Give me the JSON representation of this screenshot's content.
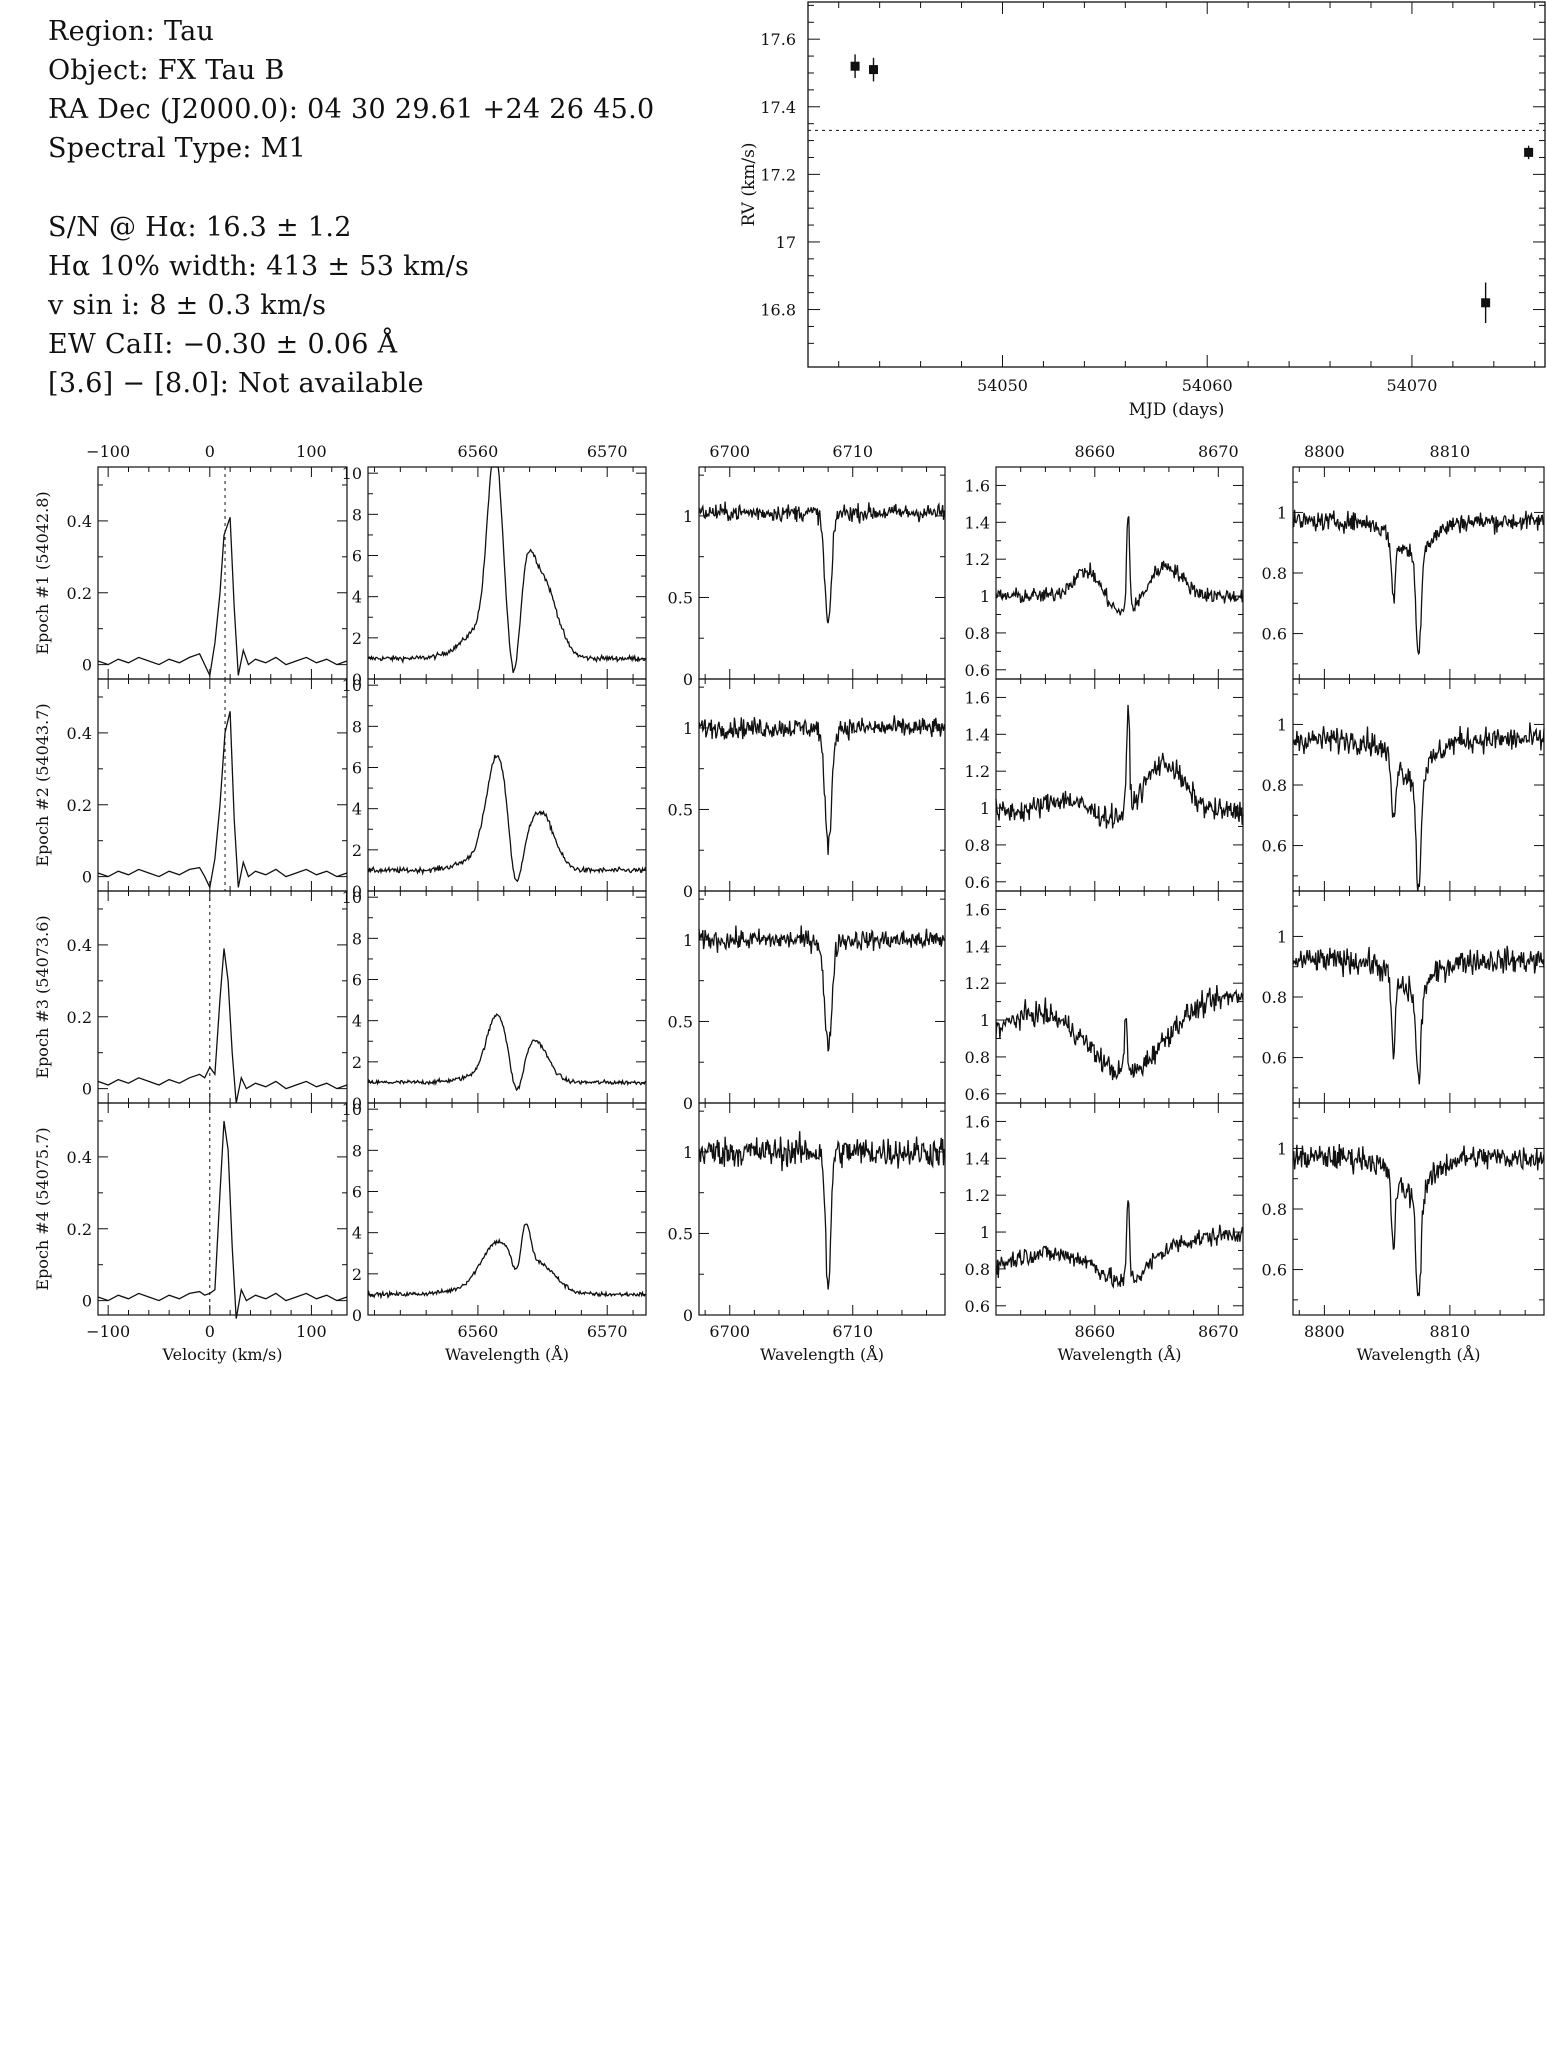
{
  "info": {
    "region": "Region: Tau",
    "object": "Object: FX Tau B",
    "radec": "RA Dec (J2000.0): 04 30 29.61 +24 26 45.0",
    "sptype": "Spectral Type: M1",
    "sn": "S/N @ Hα: 16.3 ± 1.2",
    "ha_width": "Hα 10% width: 413 ± 53 km/s",
    "vsini": "v sin i: 8 ± 0.3 km/s",
    "ew_caii": "EW CaII: −0.30 ± 0.06 Å",
    "irac": "[3.6] − [8.0]: Not available"
  },
  "chart_data": [
    {
      "type": "scatter",
      "title": "",
      "xlabel": "MJD (days)",
      "ylabel": "RV (km/s)",
      "xlim": [
        54040.5,
        54076.5
      ],
      "ylim": [
        16.63,
        17.71
      ],
      "xticks": [
        54050,
        54060,
        54070
      ],
      "yticks": [
        16.8,
        17,
        17.2,
        17.4,
        17.6
      ],
      "ytick_labels": [
        "16.8",
        "17",
        "17.2",
        "17.4",
        "17.6"
      ],
      "mean_rv_dashed": 17.33,
      "points": [
        {
          "x": 54042.8,
          "y": 17.52,
          "err": 0.035
        },
        {
          "x": 54043.7,
          "y": 17.51,
          "err": 0.035
        },
        {
          "x": 54073.6,
          "y": 16.82,
          "err": 0.06
        },
        {
          "x": 54075.7,
          "y": 17.265,
          "err": 0.02
        }
      ]
    },
    {
      "type": "line",
      "title": "",
      "epochs": [
        "Epoch #1 (54042.8)",
        "Epoch #2 (54043.7)",
        "Epoch #3 (54073.6)",
        "Epoch #4 (54075.7)"
      ],
      "panels": [
        {
          "id": "ccf",
          "xlabel": "Velocity (km/s)",
          "xlim": [
            -110,
            135
          ],
          "ylim": [
            -0.04,
            0.55
          ],
          "xticks": [
            -100,
            0,
            100
          ],
          "yticks": [
            0,
            0.2,
            0.4
          ],
          "ytick_labels": [
            "0",
            "0.2",
            "0.4"
          ],
          "dashed_velocity": [
            15,
            15,
            0,
            0
          ],
          "curves": [
            {
              "x": [
                -110,
                -100,
                -90,
                -80,
                -70,
                -60,
                -50,
                -40,
                -30,
                -20,
                -10,
                -5,
                0,
                5,
                10,
                14,
                20,
                24,
                28,
                33,
                38,
                45,
                55,
                65,
                75,
                85,
                95,
                105,
                115,
                125,
                135
              ],
              "y": [
                0.01,
                0.0,
                0.015,
                0.005,
                0.02,
                0.01,
                0.0,
                0.015,
                0.005,
                0.02,
                0.03,
                0.0,
                -0.03,
                0.06,
                0.2,
                0.36,
                0.41,
                0.16,
                -0.03,
                0.04,
                0.0,
                0.015,
                0.005,
                0.02,
                0.0,
                0.01,
                0.02,
                0.005,
                0.015,
                0.0,
                0.01
              ]
            },
            {
              "x": [
                -110,
                -100,
                -90,
                -80,
                -70,
                -60,
                -50,
                -40,
                -30,
                -20,
                -10,
                -5,
                0,
                5,
                10,
                15,
                20,
                24,
                28,
                33,
                38,
                45,
                55,
                65,
                75,
                85,
                95,
                105,
                115,
                125,
                135
              ],
              "y": [
                0.01,
                0.0,
                0.015,
                0.005,
                0.02,
                0.01,
                0.0,
                0.015,
                0.005,
                0.02,
                0.025,
                0.0,
                -0.03,
                0.05,
                0.2,
                0.4,
                0.46,
                0.16,
                -0.03,
                0.04,
                0.0,
                0.015,
                0.005,
                0.02,
                0.0,
                0.01,
                0.02,
                0.005,
                0.015,
                0.0,
                0.01
              ]
            },
            {
              "x": [
                -110,
                -100,
                -90,
                -80,
                -70,
                -60,
                -50,
                -40,
                -30,
                -20,
                -10,
                -5,
                0,
                5,
                10,
                14,
                18,
                22,
                26,
                31,
                36,
                45,
                55,
                65,
                75,
                85,
                95,
                105,
                115,
                125,
                135
              ],
              "y": [
                0.02,
                0.01,
                0.025,
                0.015,
                0.03,
                0.02,
                0.01,
                0.025,
                0.015,
                0.03,
                0.04,
                0.03,
                0.06,
                0.04,
                0.25,
                0.39,
                0.3,
                0.1,
                -0.04,
                0.03,
                0.0,
                0.015,
                0.005,
                0.02,
                0.0,
                0.01,
                0.02,
                0.005,
                0.015,
                0.0,
                0.01
              ]
            },
            {
              "x": [
                -110,
                -100,
                -90,
                -80,
                -70,
                -60,
                -50,
                -40,
                -30,
                -20,
                -10,
                -5,
                0,
                5,
                10,
                14,
                18,
                22,
                26,
                31,
                36,
                45,
                55,
                65,
                75,
                85,
                95,
                105,
                115,
                125,
                135
              ],
              "y": [
                0.01,
                0.0,
                0.015,
                0.005,
                0.02,
                0.01,
                0.0,
                0.015,
                0.005,
                0.02,
                0.025,
                0.015,
                0.02,
                0.03,
                0.3,
                0.5,
                0.42,
                0.15,
                -0.05,
                0.03,
                0.0,
                0.015,
                0.005,
                0.02,
                0.0,
                0.01,
                0.02,
                0.005,
                0.015,
                0.0,
                0.01
              ]
            }
          ]
        },
        {
          "id": "halpha",
          "xlabel": "Wavelength (Å)",
          "xlim": [
            6551.5,
            6573
          ],
          "ylim": [
            0,
            10.3
          ],
          "xticks": [
            6560,
            6570
          ],
          "yticks": [
            0,
            2,
            4,
            6,
            8,
            10
          ],
          "ytick_labels": [
            "0",
            "2",
            "4",
            "6",
            "8",
            "10"
          ],
          "profiles": [
            {
              "base": 1.0,
              "peaks": [
                [
                  6561.3,
                  8.3,
                  0.55
                ],
                [
                  6561.3,
                  2.0,
                  1.9
                ],
                [
                  6563.7,
                  2.6,
                  0.6
                ],
                [
                  6565.0,
                  3.6,
                  1.1
                ]
              ],
              "absorption": [
                6562.85,
                3.6,
                0.45
              ],
              "noise": 0.12
            },
            {
              "base": 1.0,
              "peaks": [
                [
                  6561.5,
                  4.6,
                  0.8
                ],
                [
                  6561.5,
                  1.0,
                  2.0
                ],
                [
                  6564.9,
                  2.6,
                  1.0
                ]
              ],
              "absorption": [
                6562.9,
                2.6,
                0.45
              ],
              "noise": 0.12
            },
            {
              "base": 1.0,
              "peaks": [
                [
                  6561.5,
                  2.8,
                  0.8
                ],
                [
                  6561.5,
                  0.5,
                  2.0
                ],
                [
                  6564.4,
                  1.9,
                  1.0
                ]
              ],
              "absorption": [
                6563.0,
                1.9,
                0.5
              ],
              "noise": 0.1
            },
            {
              "base": 1.0,
              "peaks": [
                [
                  6561.5,
                  2.0,
                  1.2
                ],
                [
                  6561.5,
                  0.5,
                  2.5
                ],
                [
                  6563.7,
                  1.9,
                  0.35
                ],
                [
                  6564.7,
                  1.3,
                  1.3
                ]
              ],
              "absorption": [
                6563.0,
                0.9,
                0.35
              ],
              "noise": 0.1
            }
          ]
        },
        {
          "id": "li",
          "xlabel": "Wavelength (Å)",
          "xlim": [
            6697.5,
            6717.5
          ],
          "ylim": [
            0,
            1.3
          ],
          "xticks": [
            6700,
            6710
          ],
          "yticks": [
            0,
            0.5,
            1
          ],
          "ytick_labels": [
            "0",
            "0.5",
            "1"
          ],
          "profiles": [
            {
              "base": 1.02,
              "lines": [
                [
                  6708.0,
                  0.68,
                  0.28
                ]
              ],
              "noise": 0.05
            },
            {
              "base": 1.0,
              "lines": [
                [
                  6708.0,
                  0.72,
                  0.28
                ]
              ],
              "noise": 0.06
            },
            {
              "base": 1.0,
              "lines": [
                [
                  6708.0,
                  0.66,
                  0.3
                ]
              ],
              "noise": 0.06
            },
            {
              "base": 1.0,
              "lines": [
                [
                  6708.0,
                  0.88,
                  0.2
                ]
              ],
              "noise": 0.09
            }
          ]
        },
        {
          "id": "caii",
          "xlabel": "Wavelength (Å)",
          "xlim": [
            8652,
            8672
          ],
          "ylim": [
            0.55,
            1.7
          ],
          "xticks": [
            8660,
            8670
          ],
          "yticks": [
            0.6,
            0.8,
            1,
            1.2,
            1.4,
            1.6
          ],
          "ytick_labels": [
            "0.6",
            "0.8",
            "1",
            "1.2",
            "1.4",
            "1.6"
          ],
          "profiles": [
            {
              "base": 1.0,
              "bumps": [
                [
                  8659.5,
                  0.17,
                  1.2
                ],
                [
                  8665.5,
                  0.2,
                  1.4
                ]
              ],
              "trough": [
                8662.5,
                -0.12,
                2.0
              ],
              "spike": [
                8662.7,
                0.55,
                0.12
              ],
              "noise": 0.04
            },
            {
              "base": 0.98,
              "bumps": [
                [
                  8657.5,
                  0.07,
                  1.5
                ],
                [
                  8665.5,
                  0.28,
                  1.6
                ]
              ],
              "trough": [
                8662.5,
                -0.05,
                2.0
              ],
              "spike": [
                8662.7,
                0.55,
                0.12
              ],
              "noise": 0.06
            },
            {
              "base": 1.02,
              "bumps": [
                [
                  8655.0,
                  0.1,
                  2.5
                ]
              ],
              "trough": [
                8662.7,
                -0.32,
                2.6
              ],
              "spike": [
                8662.5,
                0.3,
                0.12
              ],
              "noise": 0.06,
              "slope": 0.012
            },
            {
              "base": 0.9,
              "bumps": [
                [
                  8655.0,
                  0.05,
                  2.0
                ]
              ],
              "trough": [
                8662.5,
                -0.18,
                1.8
              ],
              "spike": [
                8662.7,
                0.45,
                0.12
              ],
              "noise": 0.05,
              "slope": 0.01
            }
          ]
        },
        {
          "id": "fe",
          "xlabel": "Wavelength (Å)",
          "xlim": [
            8797.5,
            8817.5
          ],
          "ylim": [
            0.45,
            1.15
          ],
          "xticks": [
            8800,
            8810
          ],
          "yticks": [
            0.6,
            0.8,
            1
          ],
          "ytick_labels": [
            "0.6",
            "0.8",
            "1"
          ],
          "profiles": [
            {
              "base": 0.97,
              "lines": [
                [
                  8805.5,
                  0.2,
                  0.15
                ],
                [
                  8807.5,
                  0.35,
                  0.2
                ]
              ],
              "broad": [
                8807.0,
                0.1,
                1.5
              ],
              "noise": 0.03
            },
            {
              "base": 0.95,
              "lines": [
                [
                  8805.5,
                  0.2,
                  0.15
                ],
                [
                  8807.5,
                  0.38,
                  0.2
                ]
              ],
              "broad": [
                8807.0,
                0.12,
                1.5
              ],
              "noise": 0.04
            },
            {
              "base": 0.92,
              "lines": [
                [
                  8805.5,
                  0.25,
                  0.15
                ],
                [
                  8807.5,
                  0.3,
                  0.2
                ]
              ],
              "broad": [
                8807.0,
                0.1,
                1.5
              ],
              "noise": 0.04
            },
            {
              "base": 0.97,
              "lines": [
                [
                  8805.5,
                  0.22,
                  0.15
                ],
                [
                  8807.5,
                  0.35,
                  0.2
                ]
              ],
              "broad": [
                8807.0,
                0.12,
                1.5
              ],
              "noise": 0.04
            }
          ]
        }
      ]
    }
  ]
}
